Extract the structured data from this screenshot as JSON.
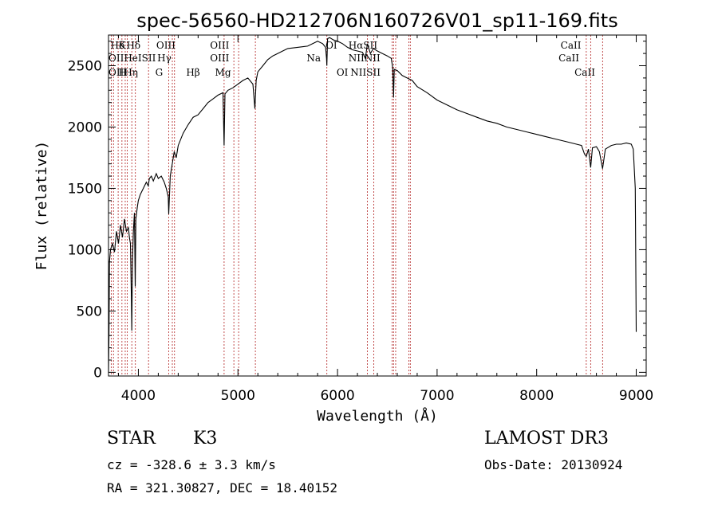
{
  "chart_data": {
    "type": "line",
    "title": "spec-56560-HD212706N160726V01_sp11-169.fits",
    "xlabel": "Wavelength (Å)",
    "ylabel": "Flux (relative)",
    "xlim": [
      3700,
      9100
    ],
    "ylim": [
      -30,
      2750
    ],
    "grid": false,
    "x_ticks": [
      "4000",
      "5000",
      "6000",
      "7000",
      "8000",
      "9000"
    ],
    "y_ticks": [
      "0",
      "500",
      "1000",
      "1500",
      "2000",
      "2500"
    ],
    "series": [
      {
        "x": [
          3700,
          3705,
          3710,
          3720,
          3740,
          3760,
          3780,
          3800,
          3820,
          3840,
          3860,
          3880,
          3900,
          3910,
          3920,
          3930,
          3934,
          3940,
          3950,
          3960,
          3968,
          3975,
          3990,
          4000,
          4020,
          4050,
          4080,
          4100,
          4110,
          4130,
          4150,
          4180,
          4200,
          4230,
          4260,
          4280,
          4300,
          4305,
          4320,
          4340,
          4360,
          4380,
          4400,
          4450,
          4500,
          4550,
          4600,
          4650,
          4700,
          4750,
          4800,
          4850,
          4861,
          4870,
          4900,
          4950,
          5000,
          5050,
          5100,
          5150,
          5170,
          5183,
          5200,
          5250,
          5300,
          5350,
          5400,
          5450,
          5500,
          5600,
          5700,
          5800,
          5850,
          5880,
          5890,
          5893,
          5900,
          5920,
          5960,
          6000,
          6050,
          6100,
          6150,
          6200,
          6250,
          6280,
          6300,
          6330,
          6360,
          6400,
          6450,
          6500,
          6540,
          6555,
          6563,
          6570,
          6600,
          6650,
          6700,
          6750,
          6800,
          6900,
          7000,
          7100,
          7200,
          7300,
          7400,
          7500,
          7600,
          7700,
          7800,
          7900,
          8000,
          8100,
          8200,
          8300,
          8400,
          8450,
          8480,
          8498,
          8520,
          8542,
          8560,
          8600,
          8630,
          8662,
          8690,
          8750,
          8800,
          8850,
          8900,
          8950,
          8970,
          8990,
          9000
        ],
        "y": [
          0,
          300,
          900,
          1000,
          1050,
          980,
          1150,
          1050,
          1200,
          1100,
          1250,
          1150,
          1180,
          1100,
          1050,
          600,
          340,
          900,
          1150,
          1300,
          700,
          1250,
          1350,
          1400,
          1450,
          1500,
          1550,
          1520,
          1580,
          1600,
          1560,
          1620,
          1580,
          1600,
          1550,
          1500,
          1430,
          1290,
          1600,
          1700,
          1800,
          1750,
          1850,
          1950,
          2020,
          2080,
          2100,
          2150,
          2200,
          2230,
          2260,
          2280,
          1850,
          2270,
          2300,
          2320,
          2350,
          2380,
          2400,
          2350,
          2150,
          2380,
          2450,
          2500,
          2550,
          2580,
          2600,
          2620,
          2640,
          2650,
          2660,
          2700,
          2680,
          2650,
          2560,
          2500,
          2720,
          2730,
          2710,
          2700,
          2680,
          2650,
          2630,
          2620,
          2610,
          2560,
          2680,
          2600,
          2640,
          2620,
          2600,
          2580,
          2560,
          2480,
          2240,
          2470,
          2460,
          2420,
          2400,
          2380,
          2330,
          2280,
          2220,
          2180,
          2140,
          2110,
          2080,
          2050,
          2030,
          2000,
          1980,
          1960,
          1940,
          1920,
          1900,
          1880,
          1860,
          1850,
          1780,
          1760,
          1820,
          1670,
          1830,
          1840,
          1800,
          1660,
          1820,
          1850,
          1860,
          1860,
          1870,
          1860,
          1820,
          1500,
          330
        ]
      }
    ],
    "line_labels": [
      {
        "text": "Hδ",
        "x": 3720,
        "row": 1
      },
      {
        "text": "K",
        "x": 3800,
        "row": 1
      },
      {
        "text": "Hδ",
        "x": 3880,
        "row": 1
      },
      {
        "text": "OIII",
        "x": 4180,
        "row": 1
      },
      {
        "text": "OIII",
        "x": 4720,
        "row": 1
      },
      {
        "text": "OI",
        "x": 5880,
        "row": 1
      },
      {
        "text": "HαSII",
        "x": 6110,
        "row": 1
      },
      {
        "text": "CaII",
        "x": 8240,
        "row": 1
      },
      {
        "text": "OIIHeISII",
        "x": 3700,
        "row": 2
      },
      {
        "text": "Hγ",
        "x": 4190,
        "row": 2
      },
      {
        "text": "OIII",
        "x": 4720,
        "row": 2
      },
      {
        "text": "Na",
        "x": 5690,
        "row": 2
      },
      {
        "text": "NIINII",
        "x": 6110,
        "row": 2
      },
      {
        "text": "CaII",
        "x": 8220,
        "row": 2
      },
      {
        "text": "OIIHη",
        "x": 3700,
        "row": 3
      },
      {
        "text": "H",
        "x": 3800,
        "row": 3
      },
      {
        "text": "G",
        "x": 4170,
        "row": 3
      },
      {
        "text": "Hβ",
        "x": 4480,
        "row": 3
      },
      {
        "text": "Mg",
        "x": 4770,
        "row": 3
      },
      {
        "text": "OI",
        "x": 5990,
        "row": 3
      },
      {
        "text": "NIISII",
        "x": 6130,
        "row": 3
      },
      {
        "text": "CaII",
        "x": 8380,
        "row": 3
      }
    ],
    "line_markers": [
      3727,
      3750,
      3797,
      3835,
      3868,
      3889,
      3934,
      3970,
      4102,
      4304,
      4341,
      4363,
      4861,
      4959,
      5007,
      5175,
      5893,
      6300,
      6364,
      6548,
      6563,
      6584,
      6717,
      6731,
      8498,
      8542,
      8662
    ]
  },
  "info": {
    "object_class": "STAR",
    "subclass": "K3",
    "survey": "LAMOST DR3",
    "redshift": "cz = -328.6 ± 3.3 km/s",
    "obs_date": "Obs-Date: 20130924",
    "coords": "RA = 321.30827, DEC =  18.40152"
  }
}
